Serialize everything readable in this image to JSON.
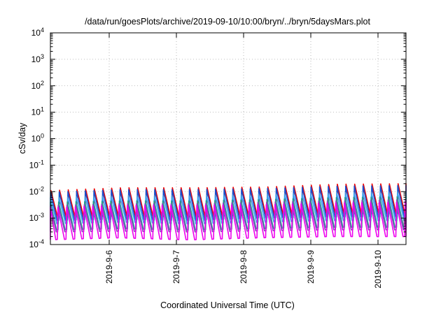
{
  "chart_data": {
    "type": "line",
    "title": "/data/run/goesPlots/archive/2019-09-10/10:00/bryn/../bryn/5daysMars.plot",
    "xlabel": "Coordinated Universal Time (UTC)",
    "ylabel": "cSv/day",
    "x_tick_labels": [
      "2019-9-6",
      "2019-9-7",
      "2019-9-8",
      "2019-9-9",
      "2019-9-10"
    ],
    "xlim": [
      "2019-09-05 03:00",
      "2019-09-10 10:00"
    ],
    "y_scale": "log",
    "ylim": [
      0.0001,
      10000
    ],
    "y_tick_labels": [
      {
        "base": "10",
        "exp": "4"
      },
      {
        "base": "10",
        "exp": "3"
      },
      {
        "base": "10",
        "exp": "2"
      },
      {
        "base": "10",
        "exp": "1"
      },
      {
        "base": "10",
        "exp": "0"
      },
      {
        "base": "10",
        "exp": "-1"
      },
      {
        "base": "10",
        "exp": "-2"
      },
      {
        "base": "10",
        "exp": "-3"
      },
      {
        "base": "10",
        "exp": "-4"
      }
    ],
    "grid": true,
    "sawtooth_period_hours": 3.1,
    "series": [
      {
        "color": "#ee0000",
        "peak": [
          0.011,
          0.014,
          0.014,
          0.015,
          0.019,
          0.02
        ],
        "trough": [
          0.0011,
          0.0012,
          0.0011,
          0.0013,
          0.0015,
          0.0015
        ]
      },
      {
        "color": "#1a4fcc",
        "peak": [
          0.0095,
          0.012,
          0.012,
          0.013,
          0.016,
          0.017
        ],
        "trough": [
          0.0008,
          0.0009,
          0.0008,
          0.001,
          0.0011,
          0.0011
        ]
      },
      {
        "color": "#3aa0ee",
        "peak": [
          0.006,
          0.007,
          0.007,
          0.008,
          0.009,
          0.01
        ],
        "trough": [
          0.0006,
          0.0007,
          0.0006,
          0.0007,
          0.0008,
          0.0008
        ]
      },
      {
        "color": "#20a090",
        "peak": [
          0.004,
          0.0045,
          0.0045,
          0.005,
          0.006,
          0.0065
        ],
        "trough": [
          0.00035,
          0.0004,
          0.00035,
          0.0004,
          0.00045,
          0.00045
        ]
      },
      {
        "color": "#9040c0",
        "peak": [
          0.003,
          0.0035,
          0.0035,
          0.004,
          0.0045,
          0.005
        ],
        "trough": [
          0.0003,
          0.00032,
          0.0003,
          0.00033,
          0.00036,
          0.00036
        ]
      },
      {
        "color": "#ee00ee",
        "peak": [
          0.0025,
          0.003,
          0.003,
          0.0032,
          0.0037,
          0.004
        ],
        "trough": [
          0.00015,
          0.00018,
          0.00015,
          0.00018,
          0.0002,
          0.0002
        ]
      }
    ]
  }
}
